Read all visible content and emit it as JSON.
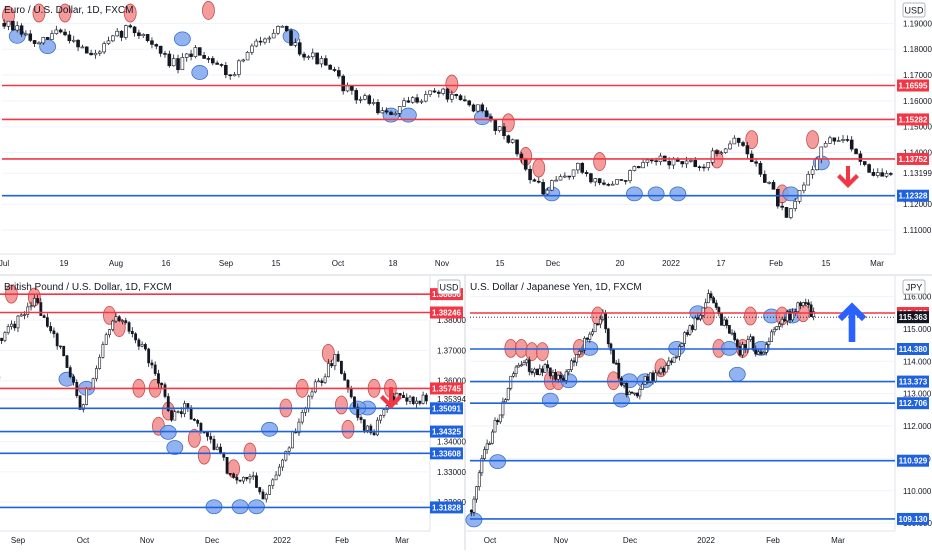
{
  "colors": {
    "up": "#ffffff",
    "down": "#131722",
    "wick": "#131722",
    "resistance": "#f23645",
    "support": "#1f62e0",
    "red_fill": "#f28b8b",
    "blue_fill": "#7fa6ec",
    "grid": "#f0f3fa",
    "axis_text": "#131722",
    "divider": "#d1d4dc",
    "down_arrow": "#f23645",
    "up_arrow": "#2962ff"
  },
  "chart_data": [
    {
      "id": "eurusd",
      "type": "candlestick",
      "title": "Euro / U.S. Dollar, 1D, FXCM",
      "currency": "USD",
      "x_ticks": [
        "Jul",
        "19",
        "Aug",
        "16",
        "Sep",
        "15",
        "Oct",
        "18",
        "Nov",
        "15",
        "Dec",
        "20",
        "2022",
        "17",
        "Feb",
        "15",
        "Mar"
      ],
      "ylim": [
        1.1015,
        1.1975
      ],
      "y_ticks": [
        "1.19000",
        "1.18000",
        "1.17000",
        "1.16000",
        "1.15000",
        "1.14000",
        "1.13199",
        "1.12000",
        "1.11000"
      ],
      "y_tick_values": [
        1.19,
        1.18,
        1.17,
        1.16,
        1.15,
        1.14,
        1.132,
        1.12,
        1.11
      ],
      "levels": [
        {
          "label": "1.16595",
          "value": 1.16595,
          "kind": "resistance"
        },
        {
          "label": "1.15282",
          "value": 1.15282,
          "kind": "resistance"
        },
        {
          "label": "1.13752",
          "value": 1.13752,
          "kind": "resistance"
        },
        {
          "label": "1.12328",
          "value": 1.12328,
          "kind": "support"
        }
      ],
      "signal": "down",
      "close_path": [
        [
          0,
          1.19
        ],
        [
          4,
          1.186
        ],
        [
          8,
          1.181
        ],
        [
          12,
          1.187
        ],
        [
          16,
          1.184
        ],
        [
          20,
          1.177
        ],
        [
          24,
          1.182
        ],
        [
          28,
          1.188
        ],
        [
          32,
          1.186
        ],
        [
          36,
          1.178
        ],
        [
          40,
          1.173
        ],
        [
          44,
          1.18
        ],
        [
          48,
          1.176
        ],
        [
          52,
          1.17
        ],
        [
          56,
          1.178
        ],
        [
          60,
          1.186
        ],
        [
          64,
          1.187
        ],
        [
          68,
          1.18
        ],
        [
          72,
          1.176
        ],
        [
          76,
          1.17
        ],
        [
          80,
          1.162
        ],
        [
          84,
          1.16
        ],
        [
          88,
          1.154
        ],
        [
          92,
          1.158
        ],
        [
          96,
          1.162
        ],
        [
          100,
          1.164
        ],
        [
          104,
          1.16
        ],
        [
          108,
          1.158
        ],
        [
          112,
          1.152
        ],
        [
          116,
          1.146
        ],
        [
          120,
          1.134
        ],
        [
          124,
          1.124
        ],
        [
          128,
          1.13
        ],
        [
          132,
          1.134
        ],
        [
          136,
          1.129
        ],
        [
          140,
          1.127
        ],
        [
          144,
          1.132
        ],
        [
          148,
          1.135
        ],
        [
          152,
          1.137
        ],
        [
          156,
          1.136
        ],
        [
          160,
          1.134
        ],
        [
          164,
          1.14
        ],
        [
          168,
          1.146
        ],
        [
          172,
          1.137
        ],
        [
          176,
          1.128
        ],
        [
          180,
          1.113
        ],
        [
          184,
          1.128
        ],
        [
          188,
          1.142
        ],
        [
          192,
          1.146
        ],
        [
          196,
          1.14
        ],
        [
          200,
          1.132
        ],
        [
          203,
          1.131
        ]
      ],
      "markers": [
        [
          1,
          1.193,
          "red"
        ],
        [
          8,
          1.194,
          "red"
        ],
        [
          14,
          1.194,
          "red"
        ],
        [
          3,
          1.185,
          "blue"
        ],
        [
          10,
          1.181,
          "blue"
        ],
        [
          29,
          1.194,
          "red"
        ],
        [
          47,
          1.195,
          "red"
        ],
        [
          41,
          1.184,
          "blue"
        ],
        [
          45,
          1.171,
          "blue"
        ],
        [
          66,
          1.185,
          "blue"
        ],
        [
          89,
          1.1545,
          "blue"
        ],
        [
          93,
          1.1545,
          "blue"
        ],
        [
          103,
          1.1665,
          "red"
        ],
        [
          110,
          1.1535,
          "blue"
        ],
        [
          116,
          1.1515,
          "red"
        ],
        [
          120,
          1.1385,
          "red"
        ],
        [
          123,
          1.134,
          "red"
        ],
        [
          126,
          1.124,
          "blue"
        ],
        [
          137,
          1.1365,
          "red"
        ],
        [
          145,
          1.124,
          "blue"
        ],
        [
          150,
          1.124,
          "blue"
        ],
        [
          155,
          1.124,
          "blue"
        ],
        [
          164,
          1.1375,
          "red"
        ],
        [
          172,
          1.145,
          "red"
        ],
        [
          179,
          1.124,
          "red"
        ],
        [
          181,
          1.124,
          "blue"
        ],
        [
          186,
          1.145,
          "red"
        ],
        [
          188,
          1.136,
          "blue"
        ]
      ]
    },
    {
      "id": "gbpusd",
      "type": "candlestick",
      "title": "British Pound / U.S. Dollar, 1D, FXCM",
      "currency": "USD",
      "x_ticks": [
        "Sep",
        "Oct",
        "Nov",
        "Dec",
        "2022",
        "Feb",
        "Mar"
      ],
      "ylim": [
        1.3115,
        1.3925
      ],
      "y_ticks": [
        "1.38000",
        "1.37000",
        "1.36000",
        "1.35394",
        "1.34000",
        "1.33000",
        "1.32000"
      ],
      "y_tick_values": [
        1.38,
        1.37,
        1.36,
        1.35394,
        1.34,
        1.33,
        1.32
      ],
      "levels": [
        {
          "label": "1.38850",
          "value": 1.3885,
          "kind": "resistance"
        },
        {
          "label": "1.38246",
          "value": 1.38246,
          "kind": "resistance"
        },
        {
          "label": "1.35745",
          "value": 1.35745,
          "kind": "resistance"
        },
        {
          "label": "1.35091",
          "value": 1.35091,
          "kind": "support"
        },
        {
          "label": "1.34325",
          "value": 1.34325,
          "kind": "support"
        },
        {
          "label": "1.33608",
          "value": 1.33608,
          "kind": "support"
        },
        {
          "label": "1.31828",
          "value": 1.31828,
          "kind": "support"
        }
      ],
      "signal": "down",
      "close_path": [
        [
          0,
          1.374
        ],
        [
          5,
          1.38
        ],
        [
          10,
          1.386
        ],
        [
          15,
          1.378
        ],
        [
          20,
          1.366
        ],
        [
          24,
          1.351
        ],
        [
          28,
          1.362
        ],
        [
          32,
          1.375
        ],
        [
          36,
          1.381
        ],
        [
          40,
          1.374
        ],
        [
          44,
          1.369
        ],
        [
          48,
          1.36
        ],
        [
          52,
          1.348
        ],
        [
          56,
          1.351
        ],
        [
          60,
          1.345
        ],
        [
          64,
          1.34
        ],
        [
          68,
          1.333
        ],
        [
          72,
          1.326
        ],
        [
          76,
          1.33
        ],
        [
          80,
          1.322
        ],
        [
          84,
          1.33
        ],
        [
          88,
          1.339
        ],
        [
          92,
          1.35
        ],
        [
          96,
          1.358
        ],
        [
          100,
          1.364
        ],
        [
          102,
          1.368
        ],
        [
          106,
          1.356
        ],
        [
          110,
          1.346
        ],
        [
          114,
          1.343
        ],
        [
          118,
          1.352
        ],
        [
          122,
          1.357
        ],
        [
          126,
          1.352
        ],
        [
          130,
          1.355
        ]
      ],
      "markers": [
        [
          3,
          1.3885,
          "red"
        ],
        [
          10,
          1.3875,
          "red"
        ],
        [
          -3,
          1.361,
          "blue"
        ],
        [
          20,
          1.3605,
          "blue"
        ],
        [
          26,
          1.3575,
          "blue"
        ],
        [
          33,
          1.3815,
          "red"
        ],
        [
          36,
          1.3775,
          "red"
        ],
        [
          42,
          1.3575,
          "red"
        ],
        [
          47,
          1.3575,
          "red"
        ],
        [
          51,
          1.35,
          "red"
        ],
        [
          48,
          1.345,
          "red"
        ],
        [
          51,
          1.343,
          "blue"
        ],
        [
          53,
          1.338,
          "blue"
        ],
        [
          59,
          1.341,
          "red"
        ],
        [
          62,
          1.3355,
          "red"
        ],
        [
          65,
          1.3185,
          "blue"
        ],
        [
          73,
          1.3185,
          "blue"
        ],
        [
          78,
          1.3185,
          "blue"
        ],
        [
          71,
          1.331,
          "red"
        ],
        [
          76,
          1.3365,
          "red"
        ],
        [
          82,
          1.344,
          "blue"
        ],
        [
          87,
          1.351,
          "red"
        ],
        [
          92,
          1.3575,
          "red"
        ],
        [
          100,
          1.369,
          "red"
        ],
        [
          104,
          1.352,
          "red"
        ],
        [
          106,
          1.344,
          "red"
        ],
        [
          112,
          1.351,
          "blue"
        ],
        [
          114,
          1.3575,
          "red"
        ],
        [
          119,
          1.3575,
          "red"
        ],
        [
          109,
          1.351,
          "blue"
        ]
      ]
    },
    {
      "id": "usdjpy",
      "type": "candlestick",
      "title": "U.S. Dollar / Japanese Yen, 1D, FXCM",
      "currency": "JPY",
      "x_ticks": [
        "Oct",
        "Nov",
        "Dec",
        "2022",
        "Feb",
        "Mar"
      ],
      "ylim": [
        108.85,
        116.45
      ],
      "y_ticks": [
        "116.000",
        "115.000",
        "114.000",
        "113.000",
        "112.000",
        "111.000",
        "110.000",
        "109.000"
      ],
      "y_tick_values": [
        116,
        115,
        114,
        113,
        112,
        111,
        110,
        109
      ],
      "levels": [
        {
          "label": "115.492",
          "value": 115.492,
          "kind": "resistance"
        },
        {
          "label": "115.363",
          "value": 115.363,
          "kind": "current"
        },
        {
          "label": "114.380",
          "value": 114.38,
          "kind": "support"
        },
        {
          "label": "113.373",
          "value": 113.373,
          "kind": "support"
        },
        {
          "label": "112.706",
          "value": 112.706,
          "kind": "support"
        },
        {
          "label": "110.929",
          "value": 110.929,
          "kind": "support"
        },
        {
          "label": "109.130",
          "value": 109.13,
          "kind": "support"
        }
      ],
      "signal": "up",
      "close_path": [
        [
          0,
          109.4
        ],
        [
          4,
          110.9
        ],
        [
          8,
          111.8
        ],
        [
          12,
          112.7
        ],
        [
          16,
          113.6
        ],
        [
          20,
          114.0
        ],
        [
          24,
          113.6
        ],
        [
          28,
          113.9
        ],
        [
          32,
          113.4
        ],
        [
          36,
          113.6
        ],
        [
          40,
          114.2
        ],
        [
          44,
          114.8
        ],
        [
          48,
          115.2
        ],
        [
          50,
          115.4
        ],
        [
          54,
          114.0
        ],
        [
          58,
          113.2
        ],
        [
          62,
          112.9
        ],
        [
          66,
          113.4
        ],
        [
          70,
          113.6
        ],
        [
          74,
          113.9
        ],
        [
          78,
          114.2
        ],
        [
          82,
          114.9
        ],
        [
          86,
          115.3
        ],
        [
          90,
          116.0
        ],
        [
          94,
          115.4
        ],
        [
          98,
          114.9
        ],
        [
          102,
          114.3
        ],
        [
          106,
          114.6
        ],
        [
          110,
          114.1
        ],
        [
          114,
          114.8
        ],
        [
          118,
          115.3
        ],
        [
          122,
          115.5
        ],
        [
          126,
          115.9
        ],
        [
          130,
          115.4
        ]
      ],
      "markers": [
        [
          1,
          109.1,
          "blue"
        ],
        [
          10,
          110.9,
          "blue"
        ],
        [
          15,
          114.4,
          "red"
        ],
        [
          19,
          114.4,
          "red"
        ],
        [
          23,
          114.3,
          "red"
        ],
        [
          27,
          114.3,
          "red"
        ],
        [
          30,
          113.4,
          "red"
        ],
        [
          33,
          113.4,
          "red"
        ],
        [
          37,
          113.4,
          "blue"
        ],
        [
          30,
          112.8,
          "blue"
        ],
        [
          41,
          114.4,
          "red"
        ],
        [
          45,
          114.4,
          "blue"
        ],
        [
          48,
          115.4,
          "red"
        ],
        [
          54,
          113.4,
          "red"
        ],
        [
          57,
          112.8,
          "blue"
        ],
        [
          60,
          113.4,
          "blue"
        ],
        [
          66,
          113.4,
          "blue"
        ],
        [
          72,
          113.8,
          "red"
        ],
        [
          78,
          114.4,
          "blue"
        ],
        [
          86,
          115.5,
          "blue"
        ],
        [
          90,
          115.4,
          "red"
        ],
        [
          94,
          114.4,
          "red"
        ],
        [
          98,
          114.4,
          "blue"
        ],
        [
          101,
          113.6,
          "blue"
        ],
        [
          103,
          114.4,
          "red"
        ],
        [
          106,
          115.4,
          "red"
        ],
        [
          110,
          114.4,
          "blue"
        ],
        [
          114,
          115.4,
          "blue"
        ],
        [
          118,
          115.4,
          "red"
        ],
        [
          122,
          115.4,
          "blue"
        ],
        [
          126,
          115.5,
          "red"
        ]
      ]
    }
  ]
}
